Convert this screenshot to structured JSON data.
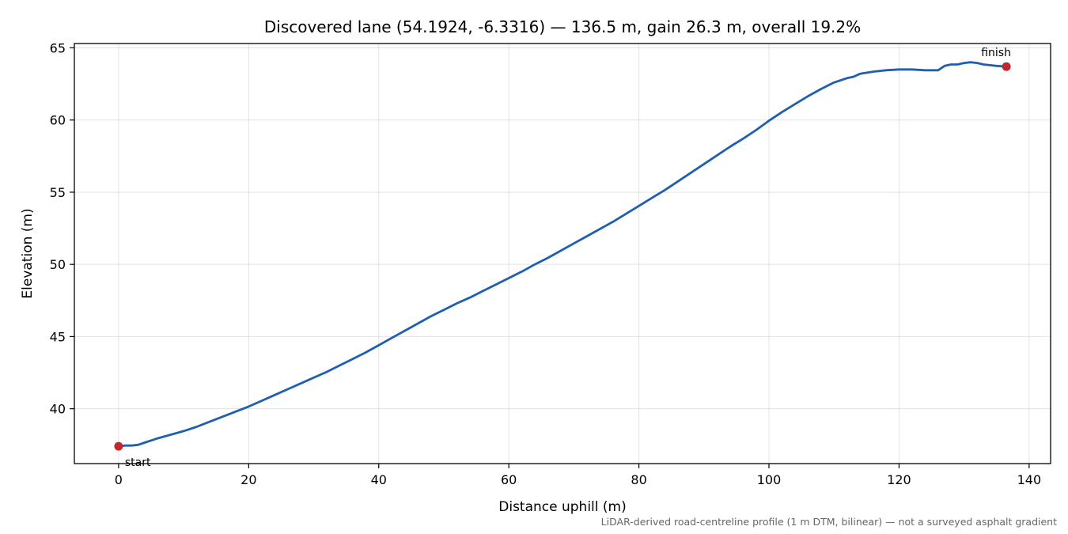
{
  "chart_data": {
    "type": "line",
    "title": "Discovered lane (54.1924, -6.3316) — 136.5 m, gain 26.3 m, overall 19.2%",
    "xlabel": "Distance uphill (m)",
    "ylabel": "Elevation (m)",
    "xlim": [
      -6.8,
      143.3
    ],
    "ylim": [
      36.2,
      65.3
    ],
    "xticks": [
      0,
      20,
      40,
      60,
      80,
      100,
      120,
      140
    ],
    "yticks": [
      40,
      45,
      50,
      55,
      60,
      65
    ],
    "grid": true,
    "footnote": "LiDAR-derived road-centreline profile (1 m DTM, bilinear) — not a surveyed asphalt gradient",
    "line_color": "#1f5fad",
    "marker_color": "#c1272d",
    "series": [
      {
        "x": [
          0,
          1,
          2,
          3,
          4,
          5,
          6,
          8,
          10,
          12,
          14,
          16,
          18,
          20,
          22,
          24,
          26,
          28,
          30,
          32,
          34,
          36,
          38,
          40,
          42,
          44,
          46,
          48,
          50,
          52,
          54,
          56,
          58,
          60,
          62,
          64,
          66,
          68,
          70,
          72,
          74,
          76,
          78,
          80,
          82,
          84,
          86,
          88,
          90,
          92,
          94,
          96,
          98,
          100,
          102,
          104,
          106,
          108,
          110,
          112,
          113,
          114,
          116,
          118,
          120,
          122,
          124,
          126,
          127,
          128,
          129,
          130,
          131,
          132,
          133,
          134,
          135,
          136.5
        ],
        "y": [
          37.4,
          37.45,
          37.45,
          37.5,
          37.65,
          37.8,
          37.95,
          38.2,
          38.45,
          38.75,
          39.1,
          39.45,
          39.8,
          40.15,
          40.55,
          40.95,
          41.35,
          41.75,
          42.15,
          42.55,
          43.0,
          43.45,
          43.9,
          44.4,
          44.9,
          45.4,
          45.9,
          46.4,
          46.85,
          47.3,
          47.7,
          48.15,
          48.6,
          49.05,
          49.5,
          50.0,
          50.45,
          50.95,
          51.45,
          51.95,
          52.45,
          52.95,
          53.5,
          54.05,
          54.6,
          55.15,
          55.75,
          56.35,
          56.95,
          57.55,
          58.15,
          58.7,
          59.3,
          59.95,
          60.55,
          61.1,
          61.65,
          62.15,
          62.6,
          62.9,
          63.0,
          63.2,
          63.35,
          63.45,
          63.5,
          63.5,
          63.45,
          63.45,
          63.75,
          63.85,
          63.85,
          63.95,
          64.0,
          63.95,
          63.85,
          63.8,
          63.75,
          63.7
        ]
      }
    ],
    "markers": [
      {
        "label": "start",
        "x": 0,
        "y": 37.4
      },
      {
        "label": "finish",
        "x": 136.5,
        "y": 63.7
      }
    ]
  }
}
